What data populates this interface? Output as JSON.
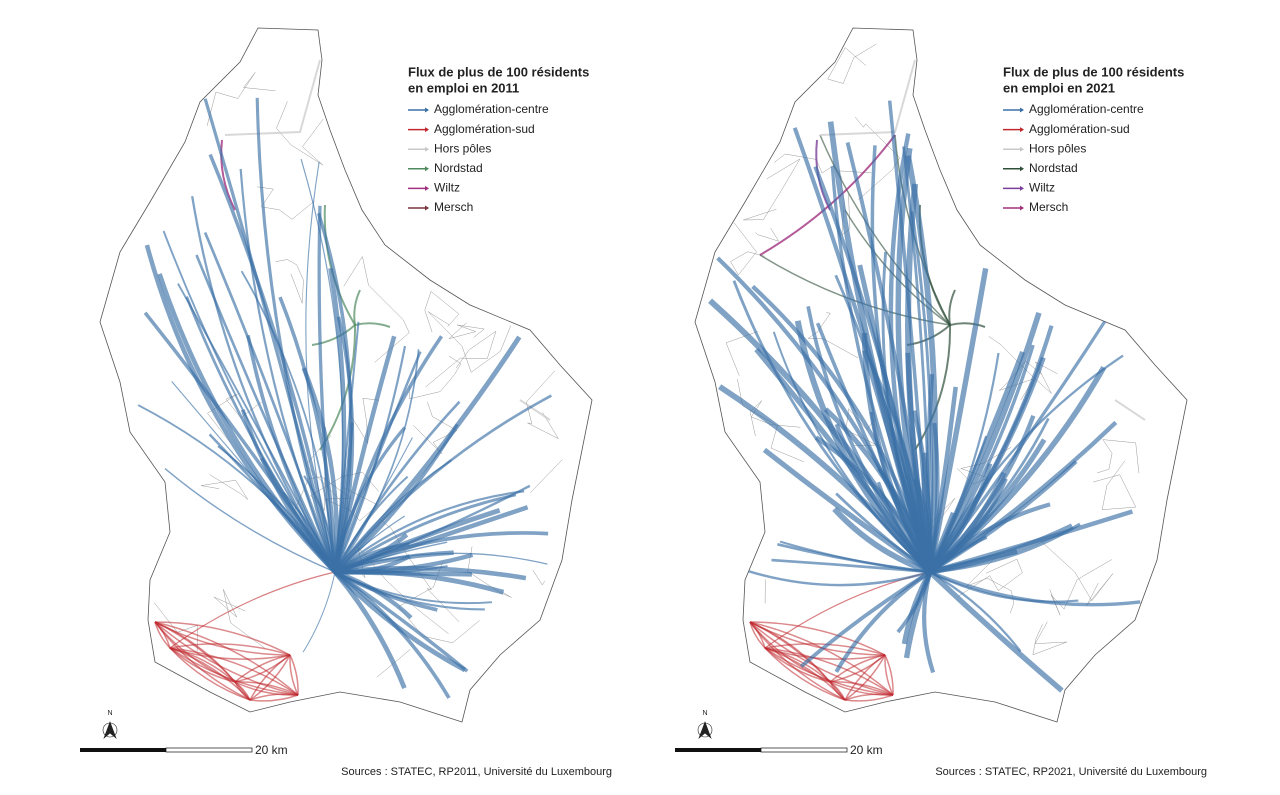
{
  "maps": [
    {
      "legend": {
        "title_lines": [
          "Flux de plus de 100 résidents",
          "en emploi en 2011"
        ],
        "items": [
          {
            "label": "Agglomération-centre",
            "color": "#3b70a6"
          },
          {
            "label": "Agglomération-sud",
            "color": "#c0282d"
          },
          {
            "label": "Hors pôles",
            "color": "#c8c8c8"
          },
          {
            "label": "Nordstad",
            "color": "#4f8a5e"
          },
          {
            "label": "Wiltz",
            "color": "#a0317f"
          },
          {
            "label": "Mersch",
            "color": "#7a3440"
          }
        ]
      },
      "north": "N",
      "scale_label": "20 km",
      "source": "Sources : STATEC, RP2011, Université du Luxembourg"
    },
    {
      "legend": {
        "title_lines": [
          "Flux de plus de 100 résidents",
          "en emploi en 2021"
        ],
        "items": [
          {
            "label": "Agglomération-centre",
            "color": "#3b70a6"
          },
          {
            "label": "Agglomération-sud",
            "color": "#c0282d"
          },
          {
            "label": "Hors pôles",
            "color": "#c8c8c8"
          },
          {
            "label": "Nordstad",
            "color": "#2f4f3a"
          },
          {
            "label": "Wiltz",
            "color": "#7a3f9a"
          },
          {
            "label": "Mersch",
            "color": "#a0317f"
          }
        ]
      },
      "north": "N",
      "scale_label": "20 km",
      "source": "Sources : STATEC, RP2021, Université du Luxembourg"
    }
  ]
}
